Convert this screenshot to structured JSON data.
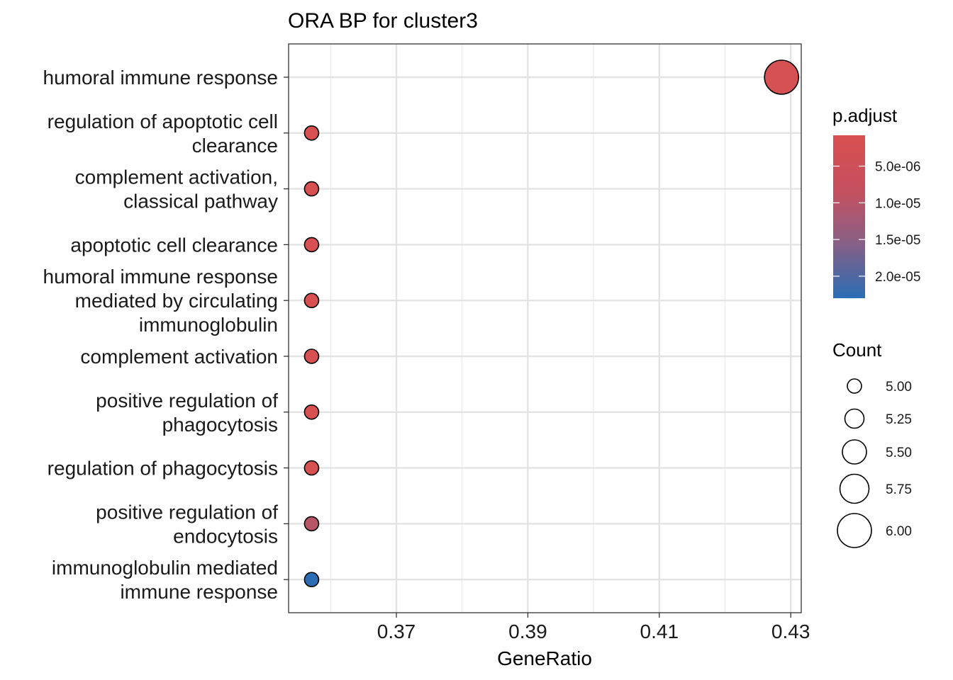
{
  "chart_data": {
    "type": "scatter",
    "title": "ORA BP for cluster3",
    "xlabel": "GeneRatio",
    "ylabel": "",
    "xlim": [
      0.3536,
      0.4316
    ],
    "x_ticks": [
      "0.37",
      "0.39",
      "0.41",
      "0.43"
    ],
    "x_tick_values": [
      0.37,
      0.39,
      0.41,
      0.43
    ],
    "grid": true,
    "categories": [
      "humoral immune response",
      "regulation of apoptotic cell\nclearance",
      "complement activation,\nclassical pathway",
      "apoptotic cell clearance",
      "humoral immune response\nmediated by circulating\nimmunoglobulin",
      "complement activation",
      "positive regulation of\nphagocytosis",
      "regulation of phagocytosis",
      "positive regulation of\nendocytosis",
      "immunoglobulin mediated\nimmune response"
    ],
    "points": [
      {
        "x": 0.4286,
        "count": 6,
        "p_adjust": 1.5e-06
      },
      {
        "x": 0.3571,
        "count": 5,
        "p_adjust": 1e-06
      },
      {
        "x": 0.3571,
        "count": 5,
        "p_adjust": 1e-06
      },
      {
        "x": 0.3571,
        "count": 5,
        "p_adjust": 1e-06
      },
      {
        "x": 0.3571,
        "count": 5,
        "p_adjust": 1e-06
      },
      {
        "x": 0.3571,
        "count": 5,
        "p_adjust": 1e-06
      },
      {
        "x": 0.3571,
        "count": 5,
        "p_adjust": 1.2e-06
      },
      {
        "x": 0.3571,
        "count": 5,
        "p_adjust": 1.2e-06
      },
      {
        "x": 0.3571,
        "count": 5,
        "p_adjust": 6.5e-06
      },
      {
        "x": 0.3571,
        "count": 5,
        "p_adjust": 2.3e-05
      }
    ],
    "color_legend": {
      "title": "p.adjust",
      "placement": "right",
      "range": [
        8e-07,
        2.3e-05
      ],
      "low_color": "#d95050",
      "high_color": "#2b6db4",
      "tick_labels": [
        "5.0e-06",
        "1.0e-05",
        "1.5e-05",
        "2.0e-05"
      ],
      "tick_values": [
        5e-06,
        1e-05,
        1.5e-05,
        2e-05
      ]
    },
    "size_legend": {
      "title": "Count",
      "placement": "right",
      "labels": [
        "5.00",
        "5.25",
        "5.50",
        "5.75",
        "6.00"
      ],
      "values": [
        5.0,
        5.25,
        5.5,
        5.75,
        6.0
      ]
    }
  }
}
